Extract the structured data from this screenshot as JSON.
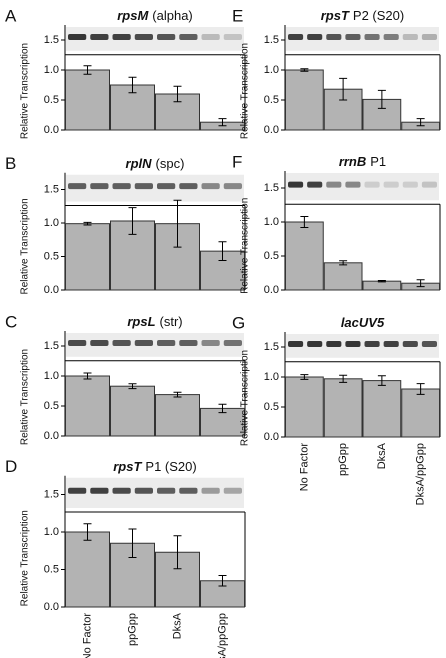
{
  "chart_data": [
    {
      "type": "bar",
      "panel": "A",
      "title_italic": "rpsM",
      "title": "(alpha)",
      "y_label": "Relative Transcription",
      "categories": [
        null,
        null,
        null,
        null
      ],
      "values": [
        1.0,
        0.75,
        0.6,
        0.13
      ],
      "errors": [
        0.07,
        0.13,
        0.13,
        0.06
      ],
      "color": "#b3b3b3",
      "ylim": [
        0,
        1.75
      ],
      "yticks": [
        {
          "value": 0,
          "label": "0.0"
        },
        {
          "value": 0.5,
          "label": "0.5"
        },
        {
          "value": 1,
          "label": "1.0"
        },
        {
          "value": 1.5,
          "label": "1.5"
        }
      ]
    },
    {
      "type": "bar",
      "panel": "B",
      "title_italic": "rplN",
      "title": "(spc)",
      "y_label": "Relative Transcription",
      "categories": [
        null,
        null,
        null,
        null
      ],
      "values": [
        0.99,
        1.03,
        0.99,
        0.58
      ],
      "errors": [
        0.02,
        0.2,
        0.35,
        0.14
      ],
      "color": "#b3b3b3",
      "ylim": [
        0,
        1.75
      ],
      "yticks": [
        {
          "value": 0,
          "label": "0.0"
        },
        {
          "value": 0.5,
          "label": "0.5"
        },
        {
          "value": 1,
          "label": "1.0"
        },
        {
          "value": 1.5,
          "label": "1.5"
        }
      ]
    },
    {
      "type": "bar",
      "panel": "C",
      "title_italic": "rpsL",
      "title": "(str)",
      "y_label": "Relative Transcription",
      "categories": [
        null,
        null,
        null,
        null
      ],
      "values": [
        1.0,
        0.83,
        0.69,
        0.46
      ],
      "errors": [
        0.05,
        0.04,
        0.04,
        0.07
      ],
      "color": "#b3b3b3",
      "ylim": [
        0,
        1.75
      ],
      "yticks": [
        {
          "value": 0,
          "label": "0.0"
        },
        {
          "value": 0.5,
          "label": "0.5"
        },
        {
          "value": 1,
          "label": "1.0"
        },
        {
          "value": 1.5,
          "label": "1.5"
        }
      ]
    },
    {
      "type": "bar",
      "panel": "D",
      "title_italic": "rpsT",
      "title": "P1 (S20)",
      "y_label": "Relative Transcription",
      "categories": [
        "No Factor",
        "ppGpp",
        "DksA",
        "DksA/ppGpp"
      ],
      "values": [
        1.0,
        0.85,
        0.73,
        0.35
      ],
      "errors": [
        0.11,
        0.19,
        0.22,
        0.07
      ],
      "color": "#b3b3b3",
      "ylim": [
        0,
        1.75
      ],
      "yticks": [
        {
          "value": 0,
          "label": "0.0"
        },
        {
          "value": 0.5,
          "label": "0.5"
        },
        {
          "value": 1,
          "label": "1.0"
        },
        {
          "value": 1.5,
          "label": "1.5"
        }
      ]
    },
    {
      "type": "bar",
      "panel": "E",
      "title_italic": "rpsT",
      "title": "P2 (S20)",
      "y_label": "Relative Transcription",
      "categories": [
        null,
        null,
        null,
        null
      ],
      "values": [
        1.0,
        0.68,
        0.51,
        0.13
      ],
      "errors": [
        0.02,
        0.18,
        0.15,
        0.06
      ],
      "color": "#b3b3b3",
      "ylim": [
        0,
        1.75
      ],
      "yticks": [
        {
          "value": 0,
          "label": "0.0"
        },
        {
          "value": 0.5,
          "label": "0.5"
        },
        {
          "value": 1,
          "label": "1.0"
        },
        {
          "value": 1.5,
          "label": "1.5"
        }
      ]
    },
    {
      "type": "bar",
      "panel": "F",
      "title_italic": "rrnB",
      "title": "P1",
      "y_label": "Relative Transcription",
      "categories": [
        null,
        null,
        null,
        null
      ],
      "values": [
        1.0,
        0.4,
        0.13,
        0.1
      ],
      "errors": [
        0.08,
        0.03,
        0.01,
        0.05
      ],
      "color": "#b3b3b3",
      "ylim": [
        0,
        1.75
      ],
      "yticks": [
        {
          "value": 0,
          "label": "0.0"
        },
        {
          "value": 0.5,
          "label": "0.5"
        },
        {
          "value": 1,
          "label": "1.0"
        },
        {
          "value": 1.5,
          "label": "1.5"
        }
      ]
    },
    {
      "type": "bar",
      "panel": "G",
      "title_italic": "lacUV5",
      "y_label": "Relative Transcription",
      "categories": [
        "No Factor",
        "ppGpp",
        "DksA",
        "DksA/ppGpp"
      ],
      "values": [
        1.0,
        0.97,
        0.94,
        0.8
      ],
      "errors": [
        0.04,
        0.06,
        0.08,
        0.09
      ],
      "color": "#b3b3b3",
      "ylim": [
        0,
        1.75
      ],
      "yticks": [
        {
          "value": 0,
          "label": "0.0"
        },
        {
          "value": 0.5,
          "label": "0.5"
        },
        {
          "value": 1,
          "label": "1.0"
        },
        {
          "value": 1.5,
          "label": "1.5"
        }
      ]
    }
  ]
}
